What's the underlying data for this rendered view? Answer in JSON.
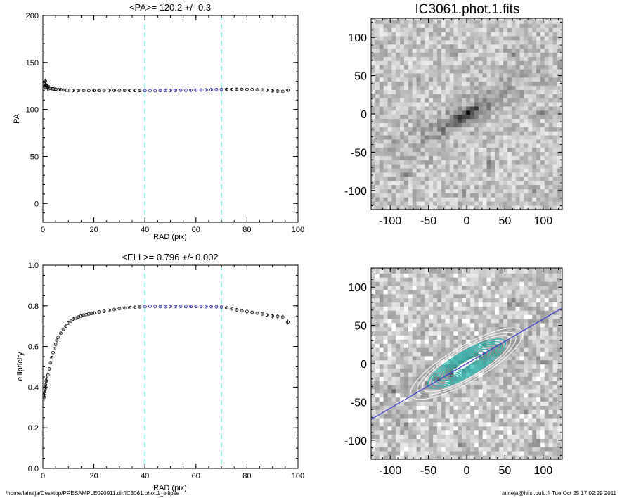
{
  "colors": {
    "guide": "#40e0d0",
    "fit": "#1a1aa0",
    "line": "#3a3ad0",
    "contour": "#ffffff",
    "contour_inner": "#30b8b0"
  },
  "footer": {
    "path": "/home/laineja/Desktop/PRESAMPLE090911.dir/IC3061.phot.1_ellipse",
    "user": "laineja@hiisi.oulu.fi  Tue Oct 25 17:02:29 2011"
  },
  "chart_data": [
    {
      "type": "scatter",
      "title": "<PA>= 120.2 +/-   0.3",
      "xlabel": "RAD (pix)",
      "ylabel": "PA",
      "xlim": [
        0,
        100
      ],
      "ylim": [
        -20,
        200
      ],
      "xticks": [
        "0",
        "20",
        "40",
        "60",
        "80",
        "100"
      ],
      "yticks": [
        "0",
        "50",
        "100",
        "150",
        "200"
      ],
      "guides_x": [
        40,
        70
      ],
      "points": [
        [
          0.5,
          127
        ],
        [
          0.8,
          124
        ],
        [
          1.0,
          130
        ],
        [
          1.2,
          126
        ],
        [
          1.5,
          125
        ],
        [
          1.8,
          123
        ],
        [
          2.1,
          124
        ],
        [
          2.5,
          123
        ],
        [
          3,
          122.5
        ],
        [
          3.5,
          122
        ],
        [
          4,
          122
        ],
        [
          4.5,
          121.5
        ],
        [
          5,
          121.5
        ],
        [
          6,
          121
        ],
        [
          7,
          121
        ],
        [
          8,
          120.8
        ],
        [
          9,
          120.5
        ],
        [
          10,
          120.5
        ],
        [
          12,
          120.3
        ],
        [
          14,
          120.2
        ],
        [
          16,
          120.1
        ],
        [
          18,
          120.1
        ],
        [
          20,
          120.2
        ],
        [
          22,
          120.2
        ],
        [
          24,
          120.3
        ],
        [
          26,
          120.3
        ],
        [
          28,
          120.3
        ],
        [
          30,
          120.3
        ],
        [
          32,
          120.2
        ],
        [
          34,
          120.2
        ],
        [
          36,
          120.2
        ],
        [
          38,
          120.1
        ],
        [
          40,
          120.1
        ],
        [
          42,
          120
        ],
        [
          44,
          120
        ],
        [
          46,
          120.1
        ],
        [
          48,
          120.2
        ],
        [
          50,
          120.2
        ],
        [
          52,
          120.3
        ],
        [
          54,
          120.4
        ],
        [
          56,
          120.4
        ],
        [
          58,
          120.5
        ],
        [
          60,
          120.6
        ],
        [
          62,
          120.7
        ],
        [
          64,
          120.8
        ],
        [
          66,
          121
        ],
        [
          68,
          121.1
        ],
        [
          70,
          121.2
        ],
        [
          72,
          121.3
        ],
        [
          74,
          121.3
        ],
        [
          76,
          121.4
        ],
        [
          78,
          121.4
        ],
        [
          80,
          121.3
        ],
        [
          82,
          121.2
        ],
        [
          84,
          121
        ],
        [
          86,
          120.8
        ],
        [
          88,
          120.5
        ],
        [
          90,
          119.8
        ],
        [
          92,
          119.5
        ],
        [
          94,
          119.3
        ],
        [
          96,
          120.5
        ]
      ],
      "fit_range": [
        40,
        70
      ]
    },
    {
      "type": "scatter",
      "title": "<ELL>= 0.796 +/-  0.002",
      "xlabel": "RAD (pix)",
      "ylabel": "ellipticity",
      "xlim": [
        0,
        100
      ],
      "ylim": [
        0,
        1
      ],
      "xticks": [
        "0",
        "20",
        "40",
        "60",
        "80",
        "100"
      ],
      "yticks": [
        "0.0",
        "0.2",
        "0.4",
        "0.6",
        "0.8",
        "1.0"
      ],
      "guides_x": [
        40,
        70
      ],
      "points": [
        [
          0.5,
          0.35
        ],
        [
          0.7,
          0.37
        ],
        [
          0.9,
          0.39
        ],
        [
          1.1,
          0.41
        ],
        [
          1.3,
          0.43
        ],
        [
          1.6,
          0.44
        ],
        [
          2,
          0.46
        ],
        [
          2.5,
          0.49
        ],
        [
          3,
          0.52
        ],
        [
          3.5,
          0.545
        ],
        [
          4,
          0.57
        ],
        [
          4.5,
          0.59
        ],
        [
          5,
          0.61
        ],
        [
          5.5,
          0.63
        ],
        [
          6,
          0.645
        ],
        [
          7,
          0.665
        ],
        [
          8,
          0.685
        ],
        [
          9,
          0.7
        ],
        [
          10,
          0.715
        ],
        [
          11,
          0.725
        ],
        [
          12,
          0.735
        ],
        [
          13,
          0.74
        ],
        [
          14,
          0.745
        ],
        [
          15,
          0.75
        ],
        [
          16,
          0.755
        ],
        [
          17,
          0.757
        ],
        [
          18,
          0.76
        ],
        [
          19,
          0.762
        ],
        [
          20,
          0.765
        ],
        [
          22,
          0.77
        ],
        [
          24,
          0.773
        ],
        [
          26,
          0.778
        ],
        [
          28,
          0.782
        ],
        [
          30,
          0.786
        ],
        [
          32,
          0.789
        ],
        [
          34,
          0.791
        ],
        [
          36,
          0.793
        ],
        [
          38,
          0.795
        ],
        [
          40,
          0.797
        ],
        [
          42,
          0.798
        ],
        [
          44,
          0.797
        ],
        [
          46,
          0.796
        ],
        [
          48,
          0.796
        ],
        [
          50,
          0.797
        ],
        [
          52,
          0.797
        ],
        [
          54,
          0.797
        ],
        [
          56,
          0.797
        ],
        [
          58,
          0.797
        ],
        [
          60,
          0.797
        ],
        [
          62,
          0.797
        ],
        [
          64,
          0.796
        ],
        [
          66,
          0.796
        ],
        [
          68,
          0.795
        ],
        [
          70,
          0.794
        ],
        [
          72,
          0.79
        ],
        [
          74,
          0.785
        ],
        [
          76,
          0.78
        ],
        [
          78,
          0.775
        ],
        [
          80,
          0.772
        ],
        [
          82,
          0.768
        ],
        [
          84,
          0.764
        ],
        [
          86,
          0.76
        ],
        [
          88,
          0.755
        ],
        [
          90,
          0.75
        ],
        [
          92,
          0.748
        ],
        [
          94,
          0.745
        ],
        [
          96,
          0.72
        ]
      ],
      "fit_range": [
        40,
        70
      ]
    },
    {
      "type": "heatmap",
      "title": "IC3061.phot.1.fits",
      "xlabel": "",
      "ylabel": "",
      "xlim": [
        -125,
        125
      ],
      "ylim": [
        -125,
        125
      ],
      "xticks": [
        "-100",
        "-50",
        "0",
        "50",
        "100"
      ],
      "yticks": [
        "-100",
        "-50",
        "0",
        "50",
        "100"
      ],
      "galaxy": {
        "pa_deg": 120.2,
        "ellipticity": 0.796
      }
    },
    {
      "type": "heatmap",
      "title": "",
      "xlabel": "",
      "ylabel": "",
      "xlim": [
        -125,
        125
      ],
      "ylim": [
        -125,
        125
      ],
      "xticks": [
        "-100",
        "-50",
        "0",
        "50",
        "100"
      ],
      "yticks": [
        "-100",
        "-50",
        "0",
        "50",
        "100"
      ],
      "galaxy": {
        "pa_deg": 120.2,
        "ellipticity": 0.796
      }
    }
  ]
}
